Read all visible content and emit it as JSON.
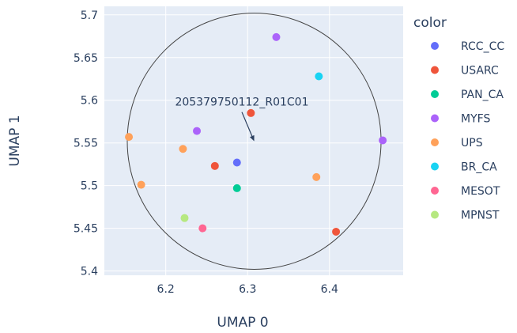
{
  "chart_data": {
    "type": "scatter",
    "xlabel": "UMAP 0",
    "ylabel": "UMAP 1",
    "xlim": [
      6.125,
      6.49
    ],
    "ylim": [
      5.395,
      5.71
    ],
    "xticks": [
      6.2,
      6.3,
      6.4
    ],
    "yticks": [
      5.4,
      5.45,
      5.5,
      5.55,
      5.6,
      5.65,
      5.7
    ],
    "xtick_labels": [
      "6.2",
      "6.3",
      "6.4"
    ],
    "ytick_labels": [
      "5.4",
      "5.45",
      "5.5",
      "5.55",
      "5.6",
      "5.65",
      "5.7"
    ],
    "grid": true,
    "legend_title": "color",
    "legend_placement": "right",
    "series": [
      {
        "name": "RCC_CC",
        "color": "#636efa",
        "points": [
          [
            6.287,
            5.527
          ]
        ]
      },
      {
        "name": "USARC",
        "color": "#EF553B",
        "points": [
          [
            6.304,
            5.585
          ],
          [
            6.26,
            5.523
          ],
          [
            6.408,
            5.446
          ]
        ]
      },
      {
        "name": "PAN_CA",
        "color": "#00cc96",
        "points": [
          [
            6.287,
            5.497
          ]
        ]
      },
      {
        "name": "MYFS",
        "color": "#ab63fa",
        "points": [
          [
            6.335,
            5.674
          ],
          [
            6.238,
            5.564
          ],
          [
            6.465,
            5.553
          ]
        ]
      },
      {
        "name": "UPS",
        "color": "#FFA15A",
        "points": [
          [
            6.155,
            5.557
          ],
          [
            6.221,
            5.543
          ],
          [
            6.17,
            5.501
          ],
          [
            6.384,
            5.51
          ]
        ]
      },
      {
        "name": "BR_CA",
        "color": "#19d3f3",
        "points": [
          [
            6.387,
            5.628
          ]
        ]
      },
      {
        "name": "MESOT",
        "color": "#FF6692",
        "points": [
          [
            6.245,
            5.45
          ]
        ]
      },
      {
        "name": "MPNST",
        "color": "#B6E880",
        "points": [
          [
            6.223,
            5.462
          ]
        ]
      }
    ],
    "annotation": {
      "text": "205379750112_R01C01",
      "target": [
        6.308,
        5.552
      ],
      "label_at": [
        6.293,
        5.588
      ]
    },
    "circle": {
      "center": [
        6.308,
        5.552
      ],
      "radius_x": 0.155,
      "radius_y": 0.15
    }
  }
}
